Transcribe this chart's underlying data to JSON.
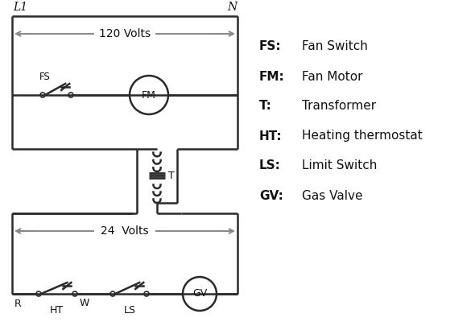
{
  "bg_color": "#ffffff",
  "line_color": "#2a2a2a",
  "arrow_color": "#888888",
  "text_color": "#111111",
  "legend_items": [
    [
      "FS:",
      "Fan Switch"
    ],
    [
      "FM:",
      "Fan Motor"
    ],
    [
      "T:",
      "Transformer"
    ],
    [
      "HT:",
      "Heating thermostat"
    ],
    [
      "LS:",
      "Limit Switch"
    ],
    [
      "GV:",
      "Gas Valve"
    ]
  ],
  "volts_120": "120 Volts",
  "volts_24": "24  Volts",
  "label_L1": "L1",
  "label_N": "N",
  "label_T": "T",
  "label_R": "R",
  "label_W": "W",
  "label_FS": "FS",
  "label_FM": "FM",
  "label_HT": "HT",
  "label_LS": "LS",
  "label_GV": "GV"
}
